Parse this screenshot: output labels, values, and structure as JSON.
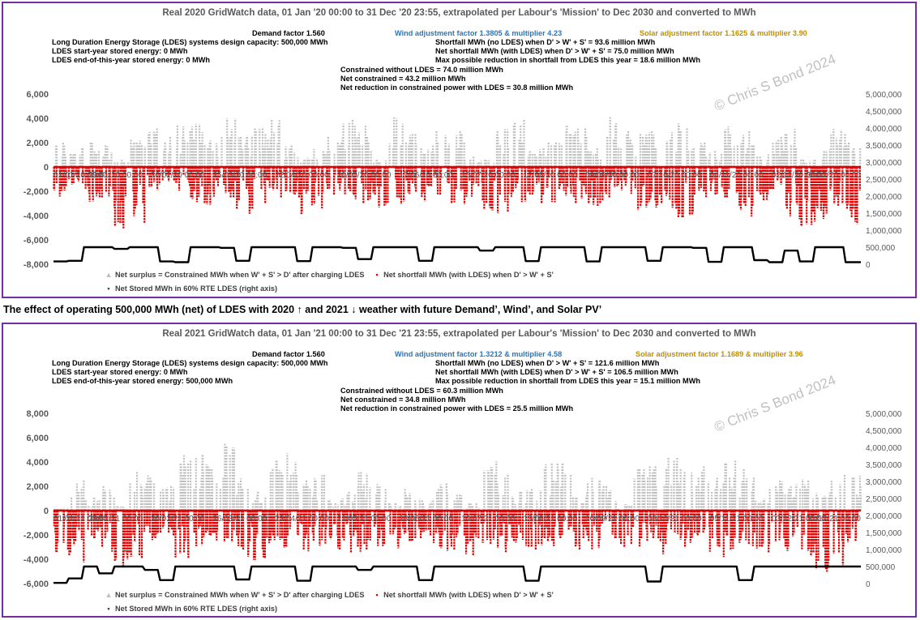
{
  "caption": "The effect of operating 500,000 MWh (net) of LDES with 2020 ↑ and 2021 ↓ weather with future Demand’, Wind’, and Solar PV’",
  "watermark": "© Chris S Bond  2024",
  "colors": {
    "surplus": "#bfbfbf",
    "shortfall": "#e60000",
    "stored": "#000000",
    "border": "#7030a0",
    "wind_text": "#2e75b6",
    "solar_text": "#bf9000"
  },
  "legend": {
    "surplus": "Net surplus = Constrained MWh when W' + S' > D' after charging LDES",
    "shortfall": "Net shortfall MWh (with LDES) when D' > W' + S'",
    "stored": "Net Stored MWh in 60% RTE LDES (right axis)",
    "surplus_marker": "▲",
    "shortfall_marker": "▪",
    "stored_marker": "•"
  },
  "panels": [
    {
      "title": "Real 2020 GridWatch data, 01 Jan '20 00:00 to 31 Dec '20 23:55,  extrapolated per Labour's 'Mission' to Dec 2030 and converted to MWh",
      "demand": "Demand factor 1.560",
      "wind": "Wind adjustment factor 1.3805 & multiplier 4.23",
      "solar": "Solar adjustment factor 1.1625 & multiplier 3.90",
      "left_lines": [
        "Long Duration Energy Storage (LDES) systems design capacity: 500,000 MWh",
        "LDES start-year stored energy: 0 MWh",
        "LDES end-of-this-year stored energy: 0 MWh"
      ],
      "right_lines": [
        "Shortfall MWh (no LDES) when D' > W' + S' = 93.6 million MWh",
        "Net shortfall MWh (with LDES) when D' > W' + S' = 75.0 million MWh",
        "Max possible reduction in shortfall from LDES this year = 18.6 million MWh"
      ],
      "mid_lines": [
        "Constrained without LDES = 74.0 million MWh",
        "Net constrained = 43.2 million MWh",
        "Net reduction in constrained power with LDES = 30.8 million MWh"
      ]
    },
    {
      "title": "Real 2021 GridWatch data, 01 Jan '21 00:00 to 31 Dec '21 23:55,  extrapolated per Labour's 'Mission' to Dec 2030 and converted to MWh",
      "demand": "Demand factor 1.560",
      "wind": "Wind adjustment factor 1.3212 & multiplier 4.58",
      "solar": "Solar adjustment factor 1.1689 & multiplier 3.96",
      "left_lines": [
        "Long Duration Energy Storage (LDES) systems design capacity: 500,000 MWh",
        "LDES start-year stored energy: 0 MWh",
        "LDES end-of-this-year stored energy: 500,000 MWh"
      ],
      "right_lines": [
        "Shortfall MWh (no LDES) when D' > W' + S' = 121.6 million MWh",
        "Net shortfall MWh (with LDES) when D' > W' + S' = 106.5 million MWh",
        "Max possible reduction in shortfall from LDES this year = 15.1 million MWh"
      ],
      "mid_lines": [
        "Constrained without LDES = 60.3 million MWh",
        "Net constrained = 34.8 million MWh",
        "Net reduction in constrained power with LDES = 25.5 million MWh"
      ]
    }
  ],
  "chart_data": [
    {
      "type": "scatter",
      "title": "Real 2020 GridWatch data, 01 Jan '20 00:00 to 31 Dec '20 23:55,  extrapolated per Labour's 'Mission' to Dec 2030 and converted to MWh",
      "ylim": [
        -8000,
        6000
      ],
      "y2lim": [
        0,
        5000000
      ],
      "yticks": [
        6000,
        4000,
        2000,
        0,
        -2000,
        -4000,
        -6000,
        -8000
      ],
      "yticks_labels": [
        "6,000",
        "4,000",
        "2,000",
        "0",
        "-2,000",
        "-4,000",
        "-6,000",
        "-8,000"
      ],
      "y2ticks_labels": [
        "5,000,000",
        "4,500,000",
        "4,000,000",
        "3,500,000",
        "3,000,000",
        "2,500,000",
        "2,000,000",
        "1,500,000",
        "1,000,000",
        "500,000",
        "0"
      ],
      "xticks": [
        "01/01/20 00:00",
        "29/01/20 00:00",
        "26/02/20 00:00",
        "25/03/20 00:00",
        "22/04/20 00:00",
        "20/05/20 00:00",
        "17/06/20 00:00",
        "15/07/20 00:00",
        "12/08/20 00:00",
        "09/09/20 00:00",
        "07/10/20 00:00",
        "04/11/20 00:00",
        "02/12/20 00:00",
        "30/12/20 00:00"
      ],
      "surplus_weekly": [
        2000,
        1800,
        2200,
        1900,
        600,
        2400,
        3200,
        2700,
        3800,
        3600,
        2500,
        4200,
        2600,
        3400,
        4400,
        2000,
        800,
        1500,
        3200,
        4000,
        3600,
        700,
        4200,
        3000,
        1800,
        3400,
        3200,
        1000,
        600,
        3500,
        3900,
        1800,
        2100,
        3600,
        3400,
        1800,
        4300,
        4200,
        3000,
        3300,
        3000,
        3800,
        2200,
        1700,
        3600,
        3200,
        1200,
        2600,
        3300,
        700,
        1500,
        3200,
        2100
      ],
      "shortfall_weekly": [
        -2600,
        -1500,
        -3400,
        -2800,
        -5200,
        -4800,
        -2100,
        -1300,
        -2000,
        -3500,
        -3300,
        -2600,
        -4100,
        -3600,
        -2800,
        -2300,
        -3900,
        -3500,
        -2500,
        -2900,
        -3200,
        -3700,
        -3300,
        -2400,
        -3000,
        -2600,
        -3400,
        -2700,
        -3600,
        -3800,
        -3000,
        -2400,
        -3300,
        -2500,
        -3100,
        -3400,
        -2800,
        -2300,
        -3700,
        -3500,
        -3900,
        -4600,
        -3100,
        -2300,
        -2800,
        -4200,
        -3000,
        -2600,
        -4900,
        -5400,
        -4300,
        -3200,
        -4700
      ],
      "stored_weekly": [
        80000,
        100000,
        500000,
        500000,
        450000,
        500000,
        500000,
        80000,
        60000,
        500000,
        500000,
        480000,
        100000,
        500000,
        500000,
        500000,
        90000,
        500000,
        500000,
        480000,
        150000,
        500000,
        500000,
        500000,
        100000,
        500000,
        500000,
        500000,
        400000,
        500000,
        500000,
        90000,
        500000,
        500000,
        500000,
        80000,
        500000,
        500000,
        500000,
        100000,
        500000,
        500000,
        480000,
        70000,
        500000,
        500000,
        120000,
        60000,
        400000,
        80000,
        500000,
        500000,
        60000
      ]
    },
    {
      "type": "scatter",
      "title": "Real 2021 GridWatch data, 01 Jan '21 00:00 to 31 Dec '21 23:55,  extrapolated per Labour's 'Mission' to Dec 2030 and converted to MWh",
      "ylim": [
        -6000,
        8000
      ],
      "y2lim": [
        0,
        5000000
      ],
      "yticks": [
        8000,
        6000,
        4000,
        2000,
        0,
        -2000,
        -4000,
        -6000
      ],
      "yticks_labels": [
        "8,000",
        "6,000",
        "4,000",
        "2,000",
        "0",
        "-2,000",
        "-4,000",
        "-6,000"
      ],
      "y2ticks_labels": [
        "5,000,000",
        "4,500,000",
        "4,000,000",
        "3,500,000",
        "3,000,000",
        "2,500,000",
        "2,000,000",
        "1,500,000",
        "1,000,000",
        "500,000",
        "0"
      ],
      "xticks": [
        "01/01/21 00:00",
        "29/01/21 00:00",
        "26/02/21 00:00",
        "26/03/21 00:00",
        "23/04/21 00:00",
        "21/05/21 00:00",
        "18/06/21 00:00",
        "16/07/21 00:00",
        "13/08/21 00:00",
        "10/09/21 00:00",
        "08/10/21 00:00",
        "05/11/21 00:00",
        "03/12/21 00:00",
        "31/12/21 00:00"
      ],
      "surplus_weekly": [
        300,
        2700,
        1200,
        2400,
        400,
        3300,
        2900,
        2100,
        4800,
        5200,
        3900,
        5800,
        2700,
        1600,
        4200,
        4800,
        2600,
        3000,
        1000,
        1600,
        3200,
        2300,
        700,
        1800,
        1000,
        2700,
        1500,
        600,
        3800,
        4200,
        1700,
        2300,
        3900,
        4000,
        1200,
        2800,
        2200,
        600,
        4000,
        5000,
        4900,
        3800,
        4100,
        2800,
        4600,
        3500,
        1200,
        2700,
        2200,
        2600,
        1500,
        3100,
        2900
      ],
      "shortfall_weekly": [
        -3500,
        -4600,
        -2700,
        -3500,
        -4800,
        -4200,
        -2500,
        -2100,
        -4800,
        -3500,
        -2600,
        -3000,
        -3800,
        -4200,
        -3600,
        -3200,
        -3800,
        -2900,
        -3500,
        -3700,
        -3400,
        -3300,
        -3100,
        -2800,
        -3600,
        -3400,
        -3300,
        -3800,
        -2800,
        -3500,
        -3200,
        -3300,
        -3000,
        -2500,
        -3700,
        -3300,
        -2700,
        -3200,
        -3600,
        -2900,
        -3700,
        -3100,
        -2200,
        -4000,
        -3400,
        -3200,
        -3600,
        -2600,
        -3400,
        -3800,
        -5100,
        -4500,
        -3100
      ],
      "stored_weekly": [
        20000,
        150000,
        500000,
        300000,
        500000,
        500000,
        400000,
        100000,
        500000,
        500000,
        500000,
        500000,
        120000,
        500000,
        500000,
        500000,
        80000,
        500000,
        500000,
        500000,
        400000,
        500000,
        500000,
        500000,
        100000,
        500000,
        500000,
        500000,
        500000,
        500000,
        500000,
        80000,
        500000,
        500000,
        500000,
        500000,
        500000,
        500000,
        500000,
        60000,
        500000,
        500000,
        500000,
        500000,
        500000,
        100000,
        500000,
        500000,
        500000,
        500000,
        500000,
        500000,
        500000
      ]
    }
  ]
}
